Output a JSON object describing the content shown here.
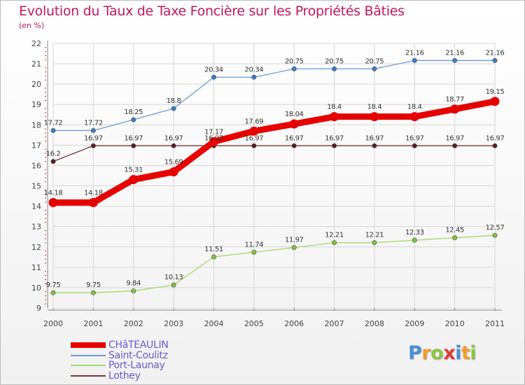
{
  "title": "Evolution du Taux de Taxe Foncière sur les Propriétés Bâties",
  "unit_label": "(en %)",
  "brand": {
    "letters": [
      "P",
      "r",
      "o",
      "x",
      "i",
      "t",
      "i"
    ],
    "colors": [
      "#4a90d9",
      "#f29b2b",
      "#8cc63f",
      "#e53935",
      "#4a90d9",
      "#f29b2b",
      "#8cc63f"
    ]
  },
  "chart_data": {
    "type": "line",
    "title": "Evolution du Taux de Taxe Foncière sur les Propriétés Bâties",
    "ylabel": "(en %)",
    "xlabel": "",
    "ylim": [
      9,
      22
    ],
    "yticks": [
      "9",
      "10",
      "11",
      "12",
      "13",
      "14",
      "15",
      "16",
      "17",
      "18",
      "19",
      "20",
      "21",
      "22"
    ],
    "grid": true,
    "legend_position": "bottom-left",
    "x": [
      "2000",
      "2001",
      "2002",
      "2003",
      "2004",
      "2005",
      "2006",
      "2007",
      "2008",
      "2009",
      "2010",
      "2011"
    ],
    "series": [
      {
        "name": "Saint-Coulitz",
        "color": "#6a9fd4",
        "point_color": "#3b7dc4",
        "values": [
          17.72,
          17.72,
          18.25,
          18.8,
          20.34,
          20.34,
          20.75,
          20.75,
          20.75,
          21.16,
          21.16,
          21.16
        ],
        "labels": [
          "17.72",
          "17.72",
          "18.25",
          "18.8",
          "20.34",
          "20.34",
          "20.75",
          "20.75",
          "20.75",
          "21.16",
          "21.16",
          "21.16"
        ]
      },
      {
        "name": "Lothey",
        "color": "#7b3535",
        "point_color": "#5a1f1f",
        "values": [
          16.2,
          16.97,
          16.97,
          16.97,
          16.97,
          16.97,
          16.97,
          16.97,
          16.97,
          16.97,
          16.97,
          16.97
        ],
        "labels": [
          "16.2",
          "16.97",
          "16.97",
          "16.97",
          "16.97",
          "16.97",
          "16.97",
          "16.97",
          "16.97",
          "16.97",
          "16.97",
          "16.97"
        ]
      },
      {
        "name": "Port-Launay",
        "color": "#a6d96a",
        "point_color": "#7cc242",
        "values": [
          9.75,
          9.75,
          9.84,
          10.13,
          11.51,
          11.74,
          11.97,
          12.21,
          12.21,
          12.33,
          12.45,
          12.57
        ],
        "labels": [
          "9.75",
          "9.75",
          "9.84",
          "10.13",
          "11.51",
          "11.74",
          "11.97",
          "12.21",
          "12.21",
          "12.33",
          "12.45",
          "12.57"
        ]
      },
      {
        "name": "CHâTEAULIN",
        "color": "#e60000",
        "point_color": "#e60000",
        "values": [
          14.18,
          14.18,
          15.31,
          15.69,
          17.17,
          17.69,
          18.04,
          18.4,
          18.4,
          18.4,
          18.77,
          19.15
        ],
        "labels": [
          "14.18",
          "14.18",
          "15.31",
          "15.69",
          "17.17",
          "17.69",
          "18.04",
          "18.4",
          "18.4",
          "18.4",
          "18.77",
          "19.15"
        ]
      }
    ],
    "legend": [
      {
        "name": "CHâTEAULIN",
        "color": "#e60000"
      },
      {
        "name": "Saint-Coulitz",
        "color": "#6a9fd4"
      },
      {
        "name": "Port-Launay",
        "color": "#a6d96a"
      },
      {
        "name": "Lothey",
        "color": "#7b3535"
      }
    ]
  }
}
